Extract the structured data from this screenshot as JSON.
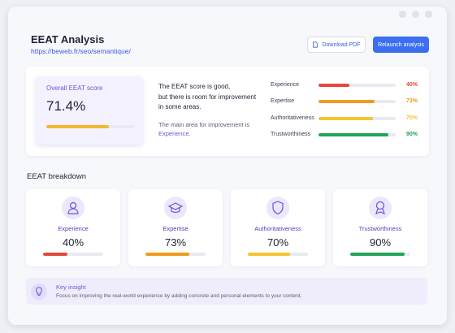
{
  "header": {
    "title": "EEAT Analysis",
    "url": "https://beweb.fr/seo/semantique/",
    "buttons": [
      "Download PDF",
      "Relaunch analysis"
    ]
  },
  "summary": {
    "label": "Overall EEAT score",
    "score": {
      "value": 71.4,
      "label": "71.4%"
    },
    "score_color": "#f5b82e",
    "text_lines": [
      "The EEAT score is good,",
      "but there is room for improvement",
      "in some areas."
    ],
    "focus_text": "The main area for improvement is",
    "focus_item": "Experience."
  },
  "metrics": [
    {
      "name": "Experience",
      "value": 40,
      "label": "40%",
      "color": "#e5483b"
    },
    {
      "name": "Expertise",
      "value": 73,
      "label": "73%",
      "color": "#f29b1d"
    },
    {
      "name": "Authoritativeness",
      "value": 70,
      "label": "70%",
      "color": "#f5c531"
    },
    {
      "name": "Trustworthiness",
      "value": 90,
      "label": "90%",
      "color": "#22a55a"
    }
  ],
  "breakdown_title": "EEAT breakdown",
  "insight": {
    "title": "Key insight",
    "text": "Focus on improving the real-world experience by adding concrete and personal elements to your content."
  }
}
